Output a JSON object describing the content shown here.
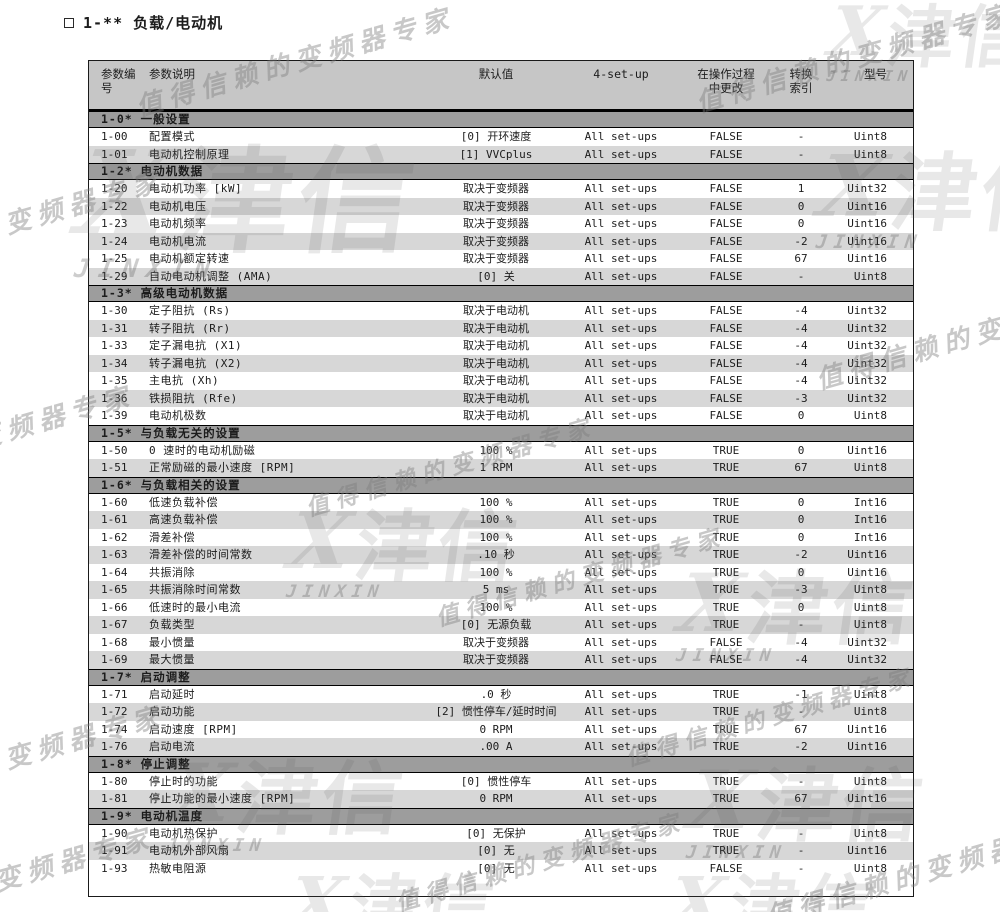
{
  "page": {
    "title": "1-** 负载/电动机"
  },
  "colors": {
    "header_bg": "#c6c6c6",
    "section_bg": "#9d9d9d",
    "row_alt_bg": "#d7d7d7",
    "border": "#1a1a1a",
    "watermark_gray": "#7d7d7d"
  },
  "watermark": {
    "script_text": "值得信赖的变频器专家",
    "logo_x": "X",
    "logo_text": "津信",
    "logo_sub": "JINXIN"
  },
  "table": {
    "headers": {
      "col_param_no": [
        "参数编",
        "号"
      ],
      "col_desc": "参数说明",
      "col_default": "默认值",
      "col_setup": "4-set-up",
      "col_change": [
        "在操作过程",
        "中更改"
      ],
      "col_conv": [
        "转换",
        "索引"
      ],
      "col_type": "型号"
    },
    "sections": [
      {
        "heading": "1-0* 一般设置",
        "rows": [
          {
            "no": "1-00",
            "desc": "配置模式",
            "default": "[0] 开环速度",
            "setup": "All set-ups",
            "change": "FALSE",
            "conv": "-",
            "type": "Uint8"
          },
          {
            "no": "1-01",
            "desc": "电动机控制原理",
            "default": "[1] VVCplus",
            "setup": "All set-ups",
            "change": "FALSE",
            "conv": "-",
            "type": "Uint8"
          }
        ]
      },
      {
        "heading": "1-2* 电动机数据",
        "rows": [
          {
            "no": "1-20",
            "desc": "电动机功率 [kW]",
            "default": "取决于变频器",
            "setup": "All set-ups",
            "change": "FALSE",
            "conv": "1",
            "type": "Uint32"
          },
          {
            "no": "1-22",
            "desc": "电动机电压",
            "default": "取决于变频器",
            "setup": "All set-ups",
            "change": "FALSE",
            "conv": "0",
            "type": "Uint16"
          },
          {
            "no": "1-23",
            "desc": "电动机频率",
            "default": "取决于变频器",
            "setup": "All set-ups",
            "change": "FALSE",
            "conv": "0",
            "type": "Uint16"
          },
          {
            "no": "1-24",
            "desc": "电动机电流",
            "default": "取决于变频器",
            "setup": "All set-ups",
            "change": "FALSE",
            "conv": "-2",
            "type": "Uint16"
          },
          {
            "no": "1-25",
            "desc": "电动机额定转速",
            "default": "取决于变频器",
            "setup": "All set-ups",
            "change": "FALSE",
            "conv": "67",
            "type": "Uint16"
          },
          {
            "no": "1-29",
            "desc": "自动电动机调整 (AMA)",
            "default": "[0] 关",
            "setup": "All set-ups",
            "change": "FALSE",
            "conv": "-",
            "type": "Uint8"
          }
        ]
      },
      {
        "heading": "1-3* 高级电动机数据",
        "rows": [
          {
            "no": "1-30",
            "desc": "定子阻抗 (Rs)",
            "default": "取决于电动机",
            "setup": "All set-ups",
            "change": "FALSE",
            "conv": "-4",
            "type": "Uint32"
          },
          {
            "no": "1-31",
            "desc": "转子阻抗 (Rr)",
            "default": "取决于电动机",
            "setup": "All set-ups",
            "change": "FALSE",
            "conv": "-4",
            "type": "Uint32"
          },
          {
            "no": "1-33",
            "desc": "定子漏电抗 (X1)",
            "default": "取决于电动机",
            "setup": "All set-ups",
            "change": "FALSE",
            "conv": "-4",
            "type": "Uint32"
          },
          {
            "no": "1-34",
            "desc": "转子漏电抗 (X2)",
            "default": "取决于电动机",
            "setup": "All set-ups",
            "change": "FALSE",
            "conv": "-4",
            "type": "Uint32"
          },
          {
            "no": "1-35",
            "desc": "主电抗 (Xh)",
            "default": "取决于电动机",
            "setup": "All set-ups",
            "change": "FALSE",
            "conv": "-4",
            "type": "Uint32"
          },
          {
            "no": "1-36",
            "desc": "铁损阻抗 (Rfe)",
            "default": "取决于电动机",
            "setup": "All set-ups",
            "change": "FALSE",
            "conv": "-3",
            "type": "Uint32"
          },
          {
            "no": "1-39",
            "desc": "电动机极数",
            "default": "取决于电动机",
            "setup": "All set-ups",
            "change": "FALSE",
            "conv": "0",
            "type": "Uint8"
          }
        ]
      },
      {
        "heading": "1-5* 与负载无关的设置",
        "rows": [
          {
            "no": "1-50",
            "desc": "0 速时的电动机励磁",
            "default": "100 %",
            "setup": "All set-ups",
            "change": "TRUE",
            "conv": "0",
            "type": "Uint16"
          },
          {
            "no": "1-51",
            "desc": "正常励磁的最小速度 [RPM]",
            "default": "1 RPM",
            "setup": "All set-ups",
            "change": "TRUE",
            "conv": "67",
            "type": "Uint8"
          }
        ]
      },
      {
        "heading": "1-6* 与负载相关的设置",
        "rows": [
          {
            "no": "1-60",
            "desc": "低速负载补偿",
            "default": "100 %",
            "setup": "All set-ups",
            "change": "TRUE",
            "conv": "0",
            "type": "Int16"
          },
          {
            "no": "1-61",
            "desc": "高速负载补偿",
            "default": "100 %",
            "setup": "All set-ups",
            "change": "TRUE",
            "conv": "0",
            "type": "Int16"
          },
          {
            "no": "1-62",
            "desc": "滑差补偿",
            "default": "100 %",
            "setup": "All set-ups",
            "change": "TRUE",
            "conv": "0",
            "type": "Int16"
          },
          {
            "no": "1-63",
            "desc": "滑差补偿的时间常数",
            "default": ".10 秒",
            "setup": "All set-ups",
            "change": "TRUE",
            "conv": "-2",
            "type": "Uint16"
          },
          {
            "no": "1-64",
            "desc": "共振消除",
            "default": "100 %",
            "setup": "All set-ups",
            "change": "TRUE",
            "conv": "0",
            "type": "Uint16"
          },
          {
            "no": "1-65",
            "desc": "共振消除时间常数",
            "default": "5 ms",
            "setup": "All set-ups",
            "change": "TRUE",
            "conv": "-3",
            "type": "Uint8"
          },
          {
            "no": "1-66",
            "desc": "低速时的最小电流",
            "default": "100 %",
            "setup": "All set-ups",
            "change": "TRUE",
            "conv": "0",
            "type": "Uint8"
          },
          {
            "no": "1-67",
            "desc": "负载类型",
            "default": "[0] 无源负载",
            "setup": "All set-ups",
            "change": "TRUE",
            "conv": "-",
            "type": "Uint8"
          },
          {
            "no": "1-68",
            "desc": "最小惯量",
            "default": "取决于变频器",
            "setup": "All set-ups",
            "change": "FALSE",
            "conv": "-4",
            "type": "Uint32"
          },
          {
            "no": "1-69",
            "desc": "最大惯量",
            "default": "取决于变频器",
            "setup": "All set-ups",
            "change": "FALSE",
            "conv": "-4",
            "type": "Uint32"
          }
        ]
      },
      {
        "heading": "1-7* 启动调整",
        "rows": [
          {
            "no": "1-71",
            "desc": "启动延时",
            "default": ".0 秒",
            "setup": "All set-ups",
            "change": "TRUE",
            "conv": "-1",
            "type": "Uint8"
          },
          {
            "no": "1-72",
            "desc": "启动功能",
            "default": "[2] 惯性停车/延时时间",
            "setup": "All set-ups",
            "change": "TRUE",
            "conv": "-",
            "type": "Uint8"
          },
          {
            "no": "1-74",
            "desc": "启动速度 [RPM]",
            "default": "0 RPM",
            "setup": "All set-ups",
            "change": "TRUE",
            "conv": "67",
            "type": "Uint16"
          },
          {
            "no": "1-76",
            "desc": "启动电流",
            "default": ".00 A",
            "setup": "All set-ups",
            "change": "TRUE",
            "conv": "-2",
            "type": "Uint16"
          }
        ]
      },
      {
        "heading": "1-8* 停止调整",
        "rows": [
          {
            "no": "1-80",
            "desc": "停止时的功能",
            "default": "[0] 惯性停车",
            "setup": "All set-ups",
            "change": "TRUE",
            "conv": "-",
            "type": "Uint8"
          },
          {
            "no": "1-81",
            "desc": "停止功能的最小速度 [RPM]",
            "default": "0 RPM",
            "setup": "All set-ups",
            "change": "TRUE",
            "conv": "67",
            "type": "Uint16"
          }
        ]
      },
      {
        "heading": "1-9* 电动机温度",
        "rows": [
          {
            "no": "1-90",
            "desc": "电动机热保护",
            "default": "[0] 无保护",
            "setup": "All set-ups",
            "change": "TRUE",
            "conv": "-",
            "type": "Uint8"
          },
          {
            "no": "1-91",
            "desc": "电动机外部风扇",
            "default": "[0] 无",
            "setup": "All set-ups",
            "change": "TRUE",
            "conv": "-",
            "type": "Uint16"
          },
          {
            "no": "1-93",
            "desc": "热敏电阻源",
            "default": "[0] 无",
            "setup": "All set-ups",
            "change": "FALSE",
            "conv": "-",
            "type": "Uint8"
          }
        ]
      }
    ]
  }
}
